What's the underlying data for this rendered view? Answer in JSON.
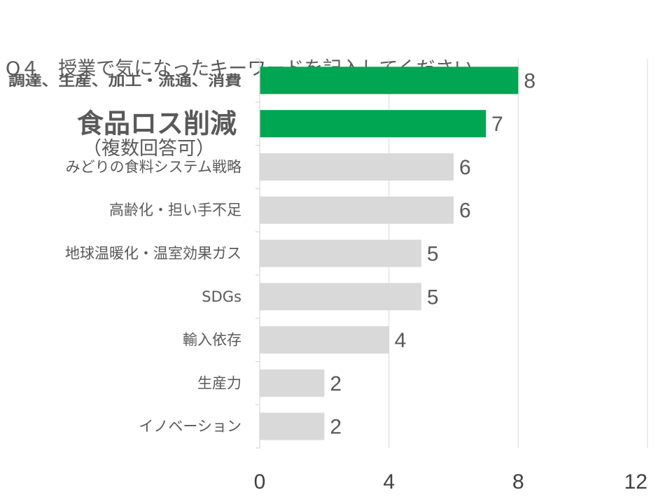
{
  "title": {
    "line1": "Q４　授業で気になったキーワードを記入してください。",
    "line2": "（複数回答可）"
  },
  "colors": {
    "highlight": "#00A651",
    "default": "#D9D9D9",
    "gridline": "#D9D9D9",
    "text": "#595959"
  },
  "chart_data": {
    "type": "bar",
    "orientation": "horizontal",
    "categories": [
      "調達、生産、加工・流通、消費",
      "食品ロス削減",
      "みどりの食料システム戦略",
      "高齢化・担い手不足",
      "地球温暖化・温室効果ガス",
      "SDGs",
      "輸入依存",
      "生産力",
      "イノベーション"
    ],
    "values": [
      8,
      7,
      6,
      6,
      5,
      5,
      4,
      2,
      2
    ],
    "highlighted": [
      true,
      true,
      false,
      false,
      false,
      false,
      false,
      false,
      false
    ],
    "label_style": [
      "bold",
      "bold-large",
      "normal",
      "normal",
      "normal",
      "normal",
      "normal",
      "normal",
      "normal"
    ],
    "xlim": [
      0,
      12
    ],
    "xticks": [
      "0",
      "4",
      "8",
      "12"
    ],
    "grid": true,
    "legend": "none"
  }
}
